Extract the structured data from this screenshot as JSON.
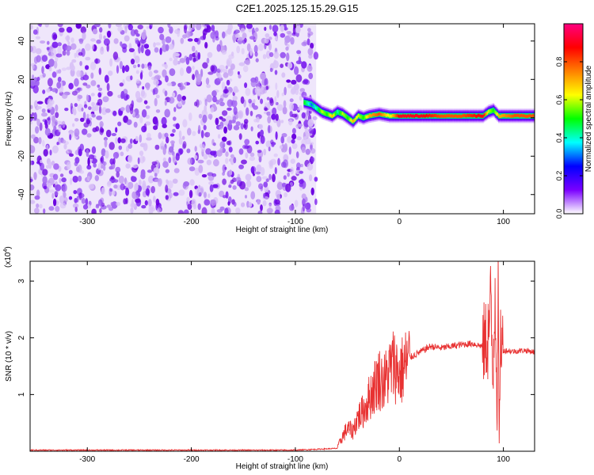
{
  "title": "C2E1.2025.125.15.29.G15",
  "chart_data": [
    {
      "type": "heatmap",
      "title": "C2E1.2025.125.15.29.G15",
      "xlabel": "Height of straight line (km)",
      "ylabel": "Frequency (Hz)",
      "xlim": [
        -355,
        130
      ],
      "ylim": [
        -50,
        49
      ],
      "xticks": [
        -300,
        -200,
        -100,
        0,
        100
      ],
      "yticks": [
        40,
        20,
        0,
        -20,
        -40
      ],
      "colorbar": {
        "label": "Normalized spectral amplitude",
        "range": [
          0.0,
          1.0
        ],
        "ticks": [
          "0.0",
          "0.2",
          "0.4",
          "0.6",
          "0.8"
        ],
        "tick_values": [
          0.0,
          0.2,
          0.4,
          0.6,
          0.8
        ],
        "colors": [
          "#ffffff",
          "#7a00ff",
          "#0000ff",
          "#00ffff",
          "#00ff00",
          "#ffff00",
          "#ff8000",
          "#ff0000",
          "#ff0080"
        ]
      },
      "noise_region_x": [
        -355,
        -80
      ],
      "signal_band": {
        "x": [
          -92,
          -85,
          -80,
          -75,
          -70,
          -65,
          -60,
          -55,
          -50,
          -45,
          -40,
          -35,
          -30,
          -20,
          -10,
          0,
          20,
          40,
          60,
          80,
          85,
          90,
          95,
          110,
          130
        ],
        "freq": [
          8,
          7,
          5,
          3,
          2,
          1,
          3,
          2,
          0,
          -2,
          1,
          0,
          1,
          2,
          1,
          1,
          1,
          1,
          1,
          1,
          3,
          4,
          1,
          1,
          1
        ],
        "amplitude": [
          0.5,
          0.3,
          0.4,
          0.6,
          0.5,
          0.7,
          0.4,
          0.6,
          0.5,
          0.7,
          0.6,
          0.5,
          0.7,
          0.8,
          0.6,
          0.9,
          0.9,
          0.8,
          0.8,
          0.9,
          0.6,
          0.5,
          0.7,
          0.8,
          0.8
        ]
      }
    },
    {
      "type": "line",
      "xlabel": "Height of straight line (km)",
      "ylabel": "SNR (10 * v/v)",
      "y_multiplier": "(x10",
      "y_multiplier_exp": "4",
      "y_multiplier_close": ")",
      "xlim": [
        -355,
        130
      ],
      "ylim": [
        0,
        3.35
      ],
      "xticks": [
        -300,
        -200,
        -100,
        0,
        100
      ],
      "yticks": [
        3,
        2,
        1
      ],
      "series": [
        {
          "color": "#e83232",
          "x": [
            -355,
            -300,
            -200,
            -100,
            -60,
            -55,
            -50,
            -45,
            -40,
            -35,
            -30,
            -25,
            -20,
            -15,
            -10,
            -5,
            0,
            5,
            10,
            20,
            30,
            40,
            50,
            60,
            70,
            80,
            85,
            88,
            90,
            92,
            94,
            95,
            96,
            97,
            100,
            110,
            120,
            130
          ],
          "y": [
            0.02,
            0.02,
            0.02,
            0.02,
            0.05,
            0.25,
            0.4,
            0.35,
            0.6,
            0.7,
            0.9,
            1.1,
            1.3,
            1.2,
            1.4,
            1.55,
            1.35,
            1.5,
            1.65,
            1.75,
            1.85,
            1.82,
            1.85,
            1.88,
            1.9,
            1.85,
            2.0,
            2.5,
            1.2,
            3.2,
            0.5,
            2.7,
            0.1,
            2.0,
            1.78,
            1.76,
            1.78,
            1.75
          ]
        }
      ]
    }
  ]
}
